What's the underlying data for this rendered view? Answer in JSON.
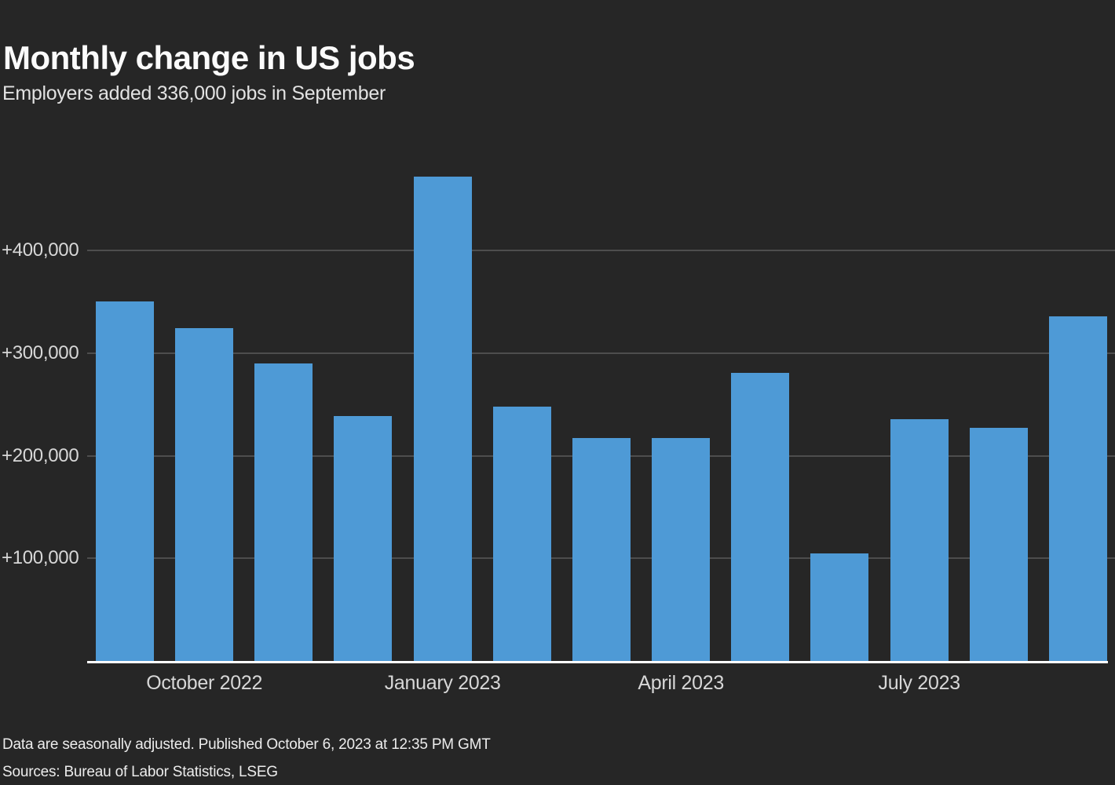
{
  "header": {
    "title": "Monthly change in US jobs",
    "subtitle": "Employers added 336,000 jobs in September"
  },
  "chart_data": {
    "type": "bar",
    "title": "Monthly change in US jobs",
    "subtitle": "Employers added 336,000 jobs in September",
    "categories": [
      "Sep 2022",
      "Oct 2022",
      "Nov 2022",
      "Dec 2022",
      "Jan 2023",
      "Feb 2023",
      "Mar 2023",
      "Apr 2023",
      "May 2023",
      "Jun 2023",
      "Jul 2023",
      "Aug 2023",
      "Sep 2023"
    ],
    "values": [
      350000,
      324000,
      290000,
      239000,
      472000,
      248000,
      217000,
      217000,
      281000,
      105000,
      236000,
      227000,
      336000
    ],
    "xlabel": "",
    "ylabel": "",
    "ylim": [
      0,
      514000
    ],
    "grid": "horizontal",
    "legend_position": "none",
    "y_ticks": [
      {
        "value": 100000,
        "label": "+100,000"
      },
      {
        "value": 200000,
        "label": "+200,000"
      },
      {
        "value": 300000,
        "label": "+300,000"
      },
      {
        "value": 400000,
        "label": "+400,000"
      }
    ],
    "x_ticks": [
      {
        "bar_index": 1,
        "label": "October 2022"
      },
      {
        "bar_index": 4,
        "label": "January 2023"
      },
      {
        "bar_index": 7,
        "label": "April 2023"
      },
      {
        "bar_index": 10,
        "label": "July 2023"
      }
    ],
    "colors": {
      "bar": "#4e9ad6",
      "gridline": "#4d4d4d",
      "baseline": "#ffffff",
      "background": "#262626",
      "tick_text": "#d7d7d7"
    }
  },
  "footer": {
    "lines": {
      "0": "Data are seasonally adjusted. Published October 6, 2023 at 12:35 PM GMT",
      "1": "Sources: Bureau of Labor Statistics, LSEG"
    }
  }
}
